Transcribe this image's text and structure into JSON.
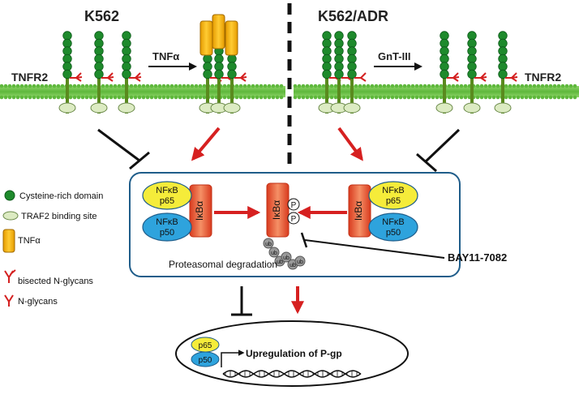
{
  "left_panel": {
    "cell_line": "K562",
    "stimulus": "TNFα",
    "receptor": "TNFR2"
  },
  "right_panel": {
    "cell_line": "K562/ADR",
    "modifier": "GnT-III",
    "receptor": "TNFR2"
  },
  "legend": [
    {
      "icon": "green-circle",
      "label": "Cysteine-rich domain"
    },
    {
      "icon": "pale-oval",
      "label": "TRAF2 binding site"
    },
    {
      "icon": "orange-bar",
      "label": "TNFα"
    },
    {
      "icon": "red-bisected-fork",
      "label": "bisected N-glycans"
    },
    {
      "icon": "red-fork",
      "label": "N-glycans"
    }
  ],
  "complex": {
    "nfkb": "NFκB",
    "p65": "p65",
    "p50": "p50",
    "ikba": "IκBα",
    "phospho": "P",
    "ubiquitin": "ub"
  },
  "degradation_label": "Proteasomal  degradation",
  "inhibitor": "BAY11-7082",
  "nucleus": {
    "p65": "p65",
    "p50": "p50",
    "outcome": "Upregulation of P-gp"
  },
  "colors": {
    "membrane": "#6cc14a",
    "cysteine_domain": "#1e8a2c",
    "traf2": "#dcebc2",
    "tnfa": "#f2b400",
    "glycan": "#d42020",
    "arrow": "#d62020",
    "p65": "#f5ec3a",
    "p50": "#2ea3dd",
    "ikba": "#ec6b3c",
    "box_border": "#1f5d8a"
  }
}
